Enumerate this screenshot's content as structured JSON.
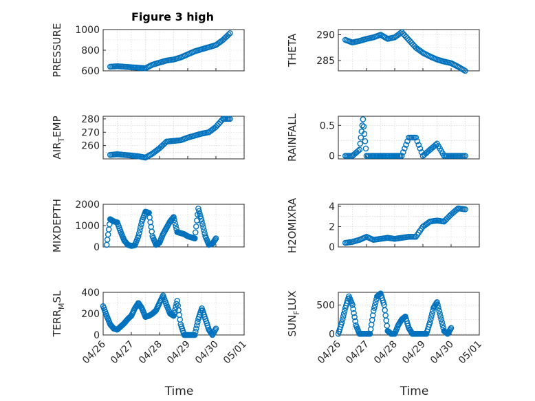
{
  "figure_title": "Figure 3 high",
  "colors": {
    "series": "#0072BD",
    "axis": "#262626",
    "grid": "#cfcfcf",
    "background": "#ffffff"
  },
  "chart_data": [
    {
      "type": "scatter",
      "title": "Figure 3 high",
      "xlabel": "",
      "ylabel": "PRESSURE",
      "ylim": [
        600,
        1000
      ],
      "yticks": [
        600,
        800,
        1000
      ],
      "grid": true,
      "x": [
        "04/26 06:00",
        "04/26 12:00",
        "04/26 18:00",
        "04/27 00:00",
        "04/27 06:00",
        "04/27 12:00",
        "04/27 18:00",
        "04/28 00:00",
        "04/28 06:00",
        "04/28 12:00",
        "04/28 18:00",
        "04/29 00:00",
        "04/29 06:00",
        "04/29 12:00",
        "04/29 18:00",
        "04/30 00:00",
        "04/30 06:00",
        "04/30 12:00"
      ],
      "y": [
        640,
        645,
        640,
        635,
        630,
        625,
        660,
        680,
        700,
        710,
        730,
        760,
        790,
        810,
        830,
        850,
        900,
        965
      ]
    },
    {
      "type": "scatter",
      "title": "",
      "xlabel": "",
      "ylabel": "THETA",
      "ylim": [
        283,
        291
      ],
      "yticks": [
        285,
        290
      ],
      "grid": true,
      "x": [
        "04/26 06:00",
        "04/26 12:00",
        "04/26 18:00",
        "04/27 00:00",
        "04/27 06:00",
        "04/27 12:00",
        "04/27 18:00",
        "04/28 00:00",
        "04/28 06:00",
        "04/28 12:00",
        "04/28 18:00",
        "04/29 00:00",
        "04/29 06:00",
        "04/29 12:00",
        "04/29 18:00",
        "04/30 00:00",
        "04/30 06:00",
        "04/30 12:00"
      ],
      "y": [
        289,
        288.5,
        288.8,
        289.2,
        289.5,
        290,
        289.2,
        289.5,
        290.5,
        289,
        287.5,
        286.5,
        285.8,
        285.2,
        284.8,
        284.5,
        283.8,
        283
      ]
    },
    {
      "type": "scatter",
      "title": "",
      "xlabel": "",
      "ylabel": "AIR_TEMP",
      "ylim": [
        250,
        282
      ],
      "yticks": [
        260,
        270,
        280
      ],
      "grid": true,
      "x": [
        "04/26 06:00",
        "04/26 12:00",
        "04/26 18:00",
        "04/27 00:00",
        "04/27 06:00",
        "04/27 12:00",
        "04/27 18:00",
        "04/28 00:00",
        "04/28 06:00",
        "04/28 12:00",
        "04/28 18:00",
        "04/29 00:00",
        "04/29 06:00",
        "04/29 12:00",
        "04/29 18:00",
        "04/30 00:00",
        "04/30 06:00",
        "04/30 12:00"
      ],
      "y": [
        253,
        253.5,
        253,
        252.5,
        252,
        251,
        254,
        258,
        263,
        263.5,
        264,
        266,
        267.5,
        269,
        270,
        274,
        280,
        280
      ]
    },
    {
      "type": "scatter",
      "title": "",
      "xlabel": "",
      "ylabel": "RAINFALL",
      "ylim": [
        -0.05,
        0.65
      ],
      "yticks": [
        0,
        0.5
      ],
      "grid": true,
      "x": [
        "04/26 06:00",
        "04/26 12:00",
        "04/26 18:00",
        "04/26 21:00",
        "04/27 00:00",
        "04/27 06:00",
        "04/27 12:00",
        "04/27 18:00",
        "04/28 00:00",
        "04/28 06:00",
        "04/28 12:00",
        "04/28 18:00",
        "04/29 00:00",
        "04/29 06:00",
        "04/29 12:00",
        "04/29 18:00",
        "04/30 00:00",
        "04/30 06:00",
        "04/30 12:00"
      ],
      "y": [
        0,
        0,
        0.1,
        0.6,
        0,
        0,
        0,
        0,
        0,
        0,
        0.3,
        0.3,
        0,
        0.1,
        0.2,
        0,
        0,
        0,
        0
      ]
    },
    {
      "type": "scatter",
      "title": "",
      "xlabel": "",
      "ylabel": "MIXDEPTH",
      "ylim": [
        0,
        2000
      ],
      "yticks": [
        0,
        1000,
        2000
      ],
      "grid": true,
      "x": [
        "04/26 03:00",
        "04/26 06:00",
        "04/26 09:00",
        "04/26 12:00",
        "04/26 15:00",
        "04/26 18:00",
        "04/26 21:00",
        "04/27 00:00",
        "04/27 03:00",
        "04/27 06:00",
        "04/27 09:00",
        "04/27 12:00",
        "04/27 15:00",
        "04/27 18:00",
        "04/27 21:00",
        "04/28 00:00",
        "04/28 03:00",
        "04/28 06:00",
        "04/28 09:00",
        "04/28 12:00",
        "04/28 15:00",
        "04/28 18:00",
        "04/28 21:00",
        "04/29 00:00",
        "04/29 03:00",
        "04/29 06:00",
        "04/29 09:00",
        "04/29 12:00",
        "04/29 15:00",
        "04/29 18:00",
        "04/29 21:00",
        "04/30 00:00"
      ],
      "y": [
        100,
        1300,
        1200,
        1150,
        700,
        300,
        100,
        50,
        80,
        500,
        1200,
        1650,
        1600,
        500,
        100,
        200,
        600,
        900,
        1200,
        1400,
        700,
        650,
        600,
        500,
        450,
        400,
        1800,
        1200,
        500,
        100,
        150,
        400
      ]
    },
    {
      "type": "scatter",
      "title": "",
      "xlabel": "",
      "ylabel": "H2OMIXRA",
      "ylim": [
        0,
        4.2
      ],
      "yticks": [
        0,
        2,
        4
      ],
      "grid": true,
      "x": [
        "04/26 06:00",
        "04/26 12:00",
        "04/26 18:00",
        "04/27 00:00",
        "04/27 06:00",
        "04/27 12:00",
        "04/27 18:00",
        "04/28 00:00",
        "04/28 06:00",
        "04/28 12:00",
        "04/28 18:00",
        "04/29 00:00",
        "04/29 06:00",
        "04/29 12:00",
        "04/29 18:00",
        "04/30 00:00",
        "04/30 06:00",
        "04/30 12:00"
      ],
      "y": [
        0.4,
        0.5,
        0.7,
        1.0,
        0.7,
        0.8,
        0.9,
        0.8,
        0.9,
        1.0,
        1.0,
        2.0,
        2.5,
        2.6,
        2.5,
        3.2,
        3.8,
        3.7
      ]
    },
    {
      "type": "scatter",
      "title": "",
      "xlabel": "Time",
      "ylabel": "TERR_MSL",
      "ylim": [
        0,
        400
      ],
      "yticks": [
        0,
        200,
        400
      ],
      "xticks": [
        "04/26",
        "04/27",
        "04/28",
        "04/29",
        "04/30",
        "05/01"
      ],
      "grid": true,
      "x": [
        "04/26 00:00",
        "04/26 03:00",
        "04/26 06:00",
        "04/26 09:00",
        "04/26 12:00",
        "04/26 15:00",
        "04/26 18:00",
        "04/26 21:00",
        "04/27 00:00",
        "04/27 03:00",
        "04/27 06:00",
        "04/27 09:00",
        "04/27 12:00",
        "04/27 15:00",
        "04/27 18:00",
        "04/27 21:00",
        "04/28 00:00",
        "04/28 03:00",
        "04/28 06:00",
        "04/28 09:00",
        "04/28 12:00",
        "04/28 15:00",
        "04/28 18:00",
        "04/28 21:00",
        "04/29 00:00",
        "04/29 03:00",
        "04/29 06:00",
        "04/29 09:00",
        "04/29 12:00",
        "04/29 15:00",
        "04/29 18:00",
        "04/29 21:00",
        "04/30 00:00"
      ],
      "y": [
        270,
        180,
        100,
        60,
        50,
        80,
        110,
        150,
        180,
        250,
        300,
        250,
        170,
        180,
        200,
        230,
        300,
        370,
        280,
        200,
        180,
        320,
        100,
        0,
        0,
        0,
        0,
        150,
        250,
        150,
        50,
        0,
        60
      ]
    },
    {
      "type": "scatter",
      "title": "",
      "xlabel": "Time",
      "ylabel": "SUN_FLUX",
      "ylim": [
        -20,
        720
      ],
      "yticks": [
        0,
        500
      ],
      "xticks": [
        "04/26",
        "04/27",
        "04/28",
        "04/29",
        "04/30",
        "05/01"
      ],
      "grid": true,
      "x": [
        "04/26 00:00",
        "04/26 03:00",
        "04/26 06:00",
        "04/26 09:00",
        "04/26 12:00",
        "04/26 15:00",
        "04/26 18:00",
        "04/26 21:00",
        "04/27 00:00",
        "04/27 03:00",
        "04/27 06:00",
        "04/27 09:00",
        "04/27 12:00",
        "04/27 15:00",
        "04/27 18:00",
        "04/27 21:00",
        "04/28 00:00",
        "04/28 03:00",
        "04/28 06:00",
        "04/28 09:00",
        "04/28 12:00",
        "04/28 15:00",
        "04/28 18:00",
        "04/28 21:00",
        "04/29 00:00",
        "04/29 03:00",
        "04/29 06:00",
        "04/29 09:00",
        "04/29 12:00",
        "04/29 15:00",
        "04/29 18:00",
        "04/29 21:00",
        "04/30 00:00"
      ],
      "y": [
        0,
        200,
        450,
        650,
        500,
        150,
        0,
        0,
        0,
        0,
        400,
        650,
        700,
        500,
        50,
        0,
        0,
        150,
        250,
        300,
        100,
        0,
        0,
        0,
        0,
        0,
        200,
        450,
        550,
        300,
        50,
        0,
        100
      ]
    }
  ]
}
